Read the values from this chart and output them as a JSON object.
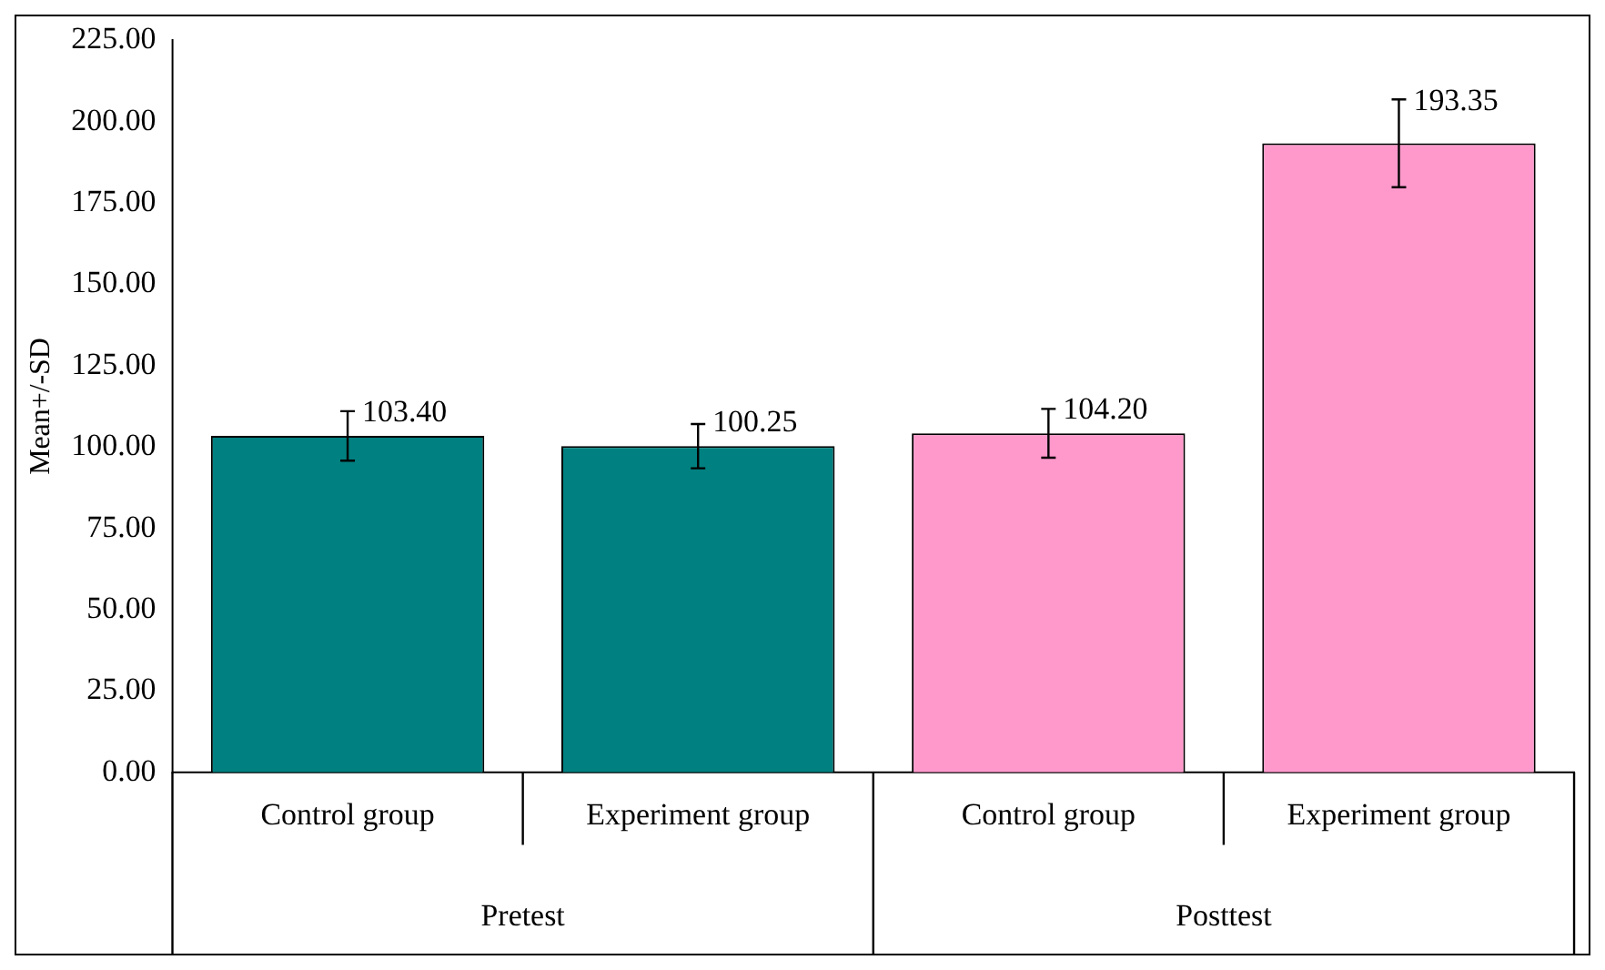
{
  "chart_data": {
    "type": "bar",
    "ylabel": "Mean+/-SD",
    "categories": [
      "Control group",
      "Experiment group",
      "Control group",
      "Experiment group"
    ],
    "values": [
      103.4,
      100.25,
      104.2,
      193.35
    ],
    "colors": [
      "#008080",
      "#008080",
      "#ff99cc",
      "#ff99cc"
    ],
    "errors": [
      7.6,
      6.8,
      7.5,
      13.5
    ],
    "value_labels": [
      "103.40",
      "100.25",
      "104.20",
      "193.35"
    ],
    "annotations": [
      "Pretest",
      "Posttest"
    ],
    "ylim": [
      0,
      225
    ],
    "yticks": [
      {
        "value": 0,
        "label": "0.00"
      },
      {
        "value": 25,
        "label": "25.00"
      },
      {
        "value": 50,
        "label": "50.00"
      },
      {
        "value": 75,
        "label": "75.00"
      },
      {
        "value": 100,
        "label": "100.00"
      },
      {
        "value": 125,
        "label": "125.00"
      },
      {
        "value": 150,
        "label": "150.00"
      },
      {
        "value": 175,
        "label": "175.00"
      },
      {
        "value": 200,
        "label": "200.00"
      },
      {
        "value": 225,
        "label": "225.00"
      }
    ],
    "grid": false,
    "legend": false
  }
}
